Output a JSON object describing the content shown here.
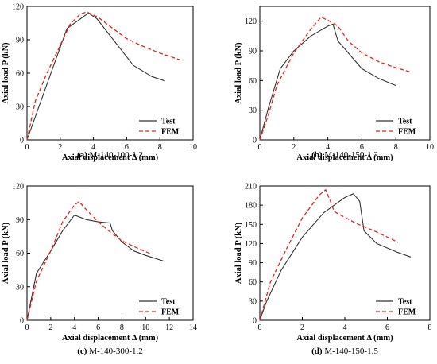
{
  "chart_data": [
    {
      "type": "line",
      "caption": {
        "letter": "(a)",
        "text": " M-140-100-1.2"
      },
      "xlabel": "Axial displacement Δ (mm)",
      "ylabel": "Axial load P (kN)",
      "xlim": [
        0,
        10
      ],
      "ylim": [
        0,
        120
      ],
      "xticks": [
        0,
        2,
        4,
        6,
        8,
        10
      ],
      "yticks": [
        0,
        30,
        60,
        90,
        120
      ],
      "legend": "bottom-right",
      "series": [
        {
          "name": "Test",
          "color": "#333333",
          "style": "solid",
          "x": [
            0,
            2.4,
            3.7,
            4.2,
            6.4,
            7.5,
            8.3
          ],
          "y": [
            0,
            100,
            114,
            109,
            67,
            57,
            53
          ]
        },
        {
          "name": "FEM",
          "color": "#e8231c",
          "style": "dashed",
          "x": [
            0,
            0.5,
            1.2,
            2.0,
            2.6,
            3.2,
            3.6,
            4.3,
            5.0,
            6.0,
            7.0,
            8.0,
            9.2
          ],
          "y": [
            0,
            35,
            60,
            85,
            104,
            113,
            115,
            110,
            102,
            91,
            84,
            78,
            72
          ]
        }
      ]
    },
    {
      "type": "line",
      "caption": {
        "letter": "(b)",
        "text": " M-140-150-1.2"
      },
      "xlabel": "Axial displacement Δ (mm)",
      "ylabel": "Axial load P (kN)",
      "xlim": [
        0,
        10
      ],
      "ylim": [
        0,
        135
      ],
      "xticks": [
        0,
        2,
        4,
        6,
        8,
        10
      ],
      "yticks": [
        0,
        30,
        60,
        90,
        120
      ],
      "legend": "bottom-right",
      "series": [
        {
          "name": "Test",
          "color": "#333333",
          "style": "solid",
          "x": [
            0,
            0.5,
            1.2,
            2.0,
            3.0,
            4.0,
            4.3,
            4.6,
            5.0,
            5.5,
            6.0,
            7.0,
            8.0
          ],
          "y": [
            0,
            32,
            72,
            90,
            105,
            115,
            117,
            100,
            92,
            82,
            72,
            62,
            55
          ]
        },
        {
          "name": "FEM",
          "color": "#e8231c",
          "style": "dashed",
          "x": [
            0,
            0.5,
            1.0,
            2.0,
            3.0,
            3.6,
            4.0,
            4.6,
            5.2,
            6.0,
            7.0,
            8.0,
            8.8
          ],
          "y": [
            0,
            25,
            55,
            88,
            112,
            124,
            121,
            115,
            100,
            88,
            79,
            73,
            69
          ]
        }
      ]
    },
    {
      "type": "line",
      "caption": {
        "letter": "(c)",
        "text": " M-140-300-1.2"
      },
      "xlabel": "Axial displacement Δ (mm)",
      "ylabel": "Axial load P (kN)",
      "xlim": [
        0,
        14
      ],
      "ylim": [
        0,
        120
      ],
      "xticks": [
        0,
        2,
        4,
        6,
        8,
        10,
        12,
        14
      ],
      "yticks": [
        0,
        30,
        60,
        90,
        120
      ],
      "legend": "bottom-right",
      "series": [
        {
          "name": "Test",
          "color": "#333333",
          "style": "solid",
          "x": [
            0,
            0.8,
            2.0,
            3.0,
            4.0,
            5.0,
            6.0,
            7.0,
            7.2,
            8.0,
            9.0,
            10.0,
            11.5
          ],
          "y": [
            0,
            42,
            62,
            80,
            94,
            90,
            88,
            87,
            80,
            70,
            62,
            58,
            53
          ]
        },
        {
          "name": "FEM",
          "color": "#e8231c",
          "style": "dashed",
          "x": [
            0,
            0.8,
            2.0,
            3.0,
            4.0,
            4.4,
            4.8,
            6.0,
            7.0,
            8.0,
            9.0,
            10.5
          ],
          "y": [
            0,
            35,
            62,
            88,
            103,
            106,
            101,
            88,
            79,
            71,
            66,
            59
          ]
        }
      ]
    },
    {
      "type": "line",
      "caption": {
        "letter": "(d)",
        "text": " M-140-150-1.5"
      },
      "xlabel": "Axial displacement Δ (mm)",
      "ylabel": "Axial load P (kN)",
      "xlim": [
        0,
        8
      ],
      "ylim": [
        0,
        210
      ],
      "xticks": [
        0,
        2,
        4,
        6,
        8
      ],
      "yticks": [
        0,
        30,
        60,
        90,
        120,
        150,
        180,
        210
      ],
      "legend": "bottom-right",
      "series": [
        {
          "name": "Test",
          "color": "#333333",
          "style": "solid",
          "x": [
            0,
            0.3,
            1.0,
            2.0,
            3.0,
            4.0,
            4.4,
            4.7,
            4.9,
            5.5,
            6.5,
            7.1
          ],
          "y": [
            0,
            28,
            78,
            130,
            168,
            192,
            198,
            186,
            140,
            120,
            106,
            99
          ]
        },
        {
          "name": "FEM",
          "color": "#e8231c",
          "style": "dashed",
          "x": [
            0,
            0.5,
            1.2,
            2.0,
            2.8,
            3.1,
            3.3,
            3.5,
            4.5,
            5.5,
            6.5
          ],
          "y": [
            0,
            60,
            108,
            160,
            196,
            204,
            188,
            170,
            152,
            138,
            122
          ]
        }
      ]
    }
  ]
}
